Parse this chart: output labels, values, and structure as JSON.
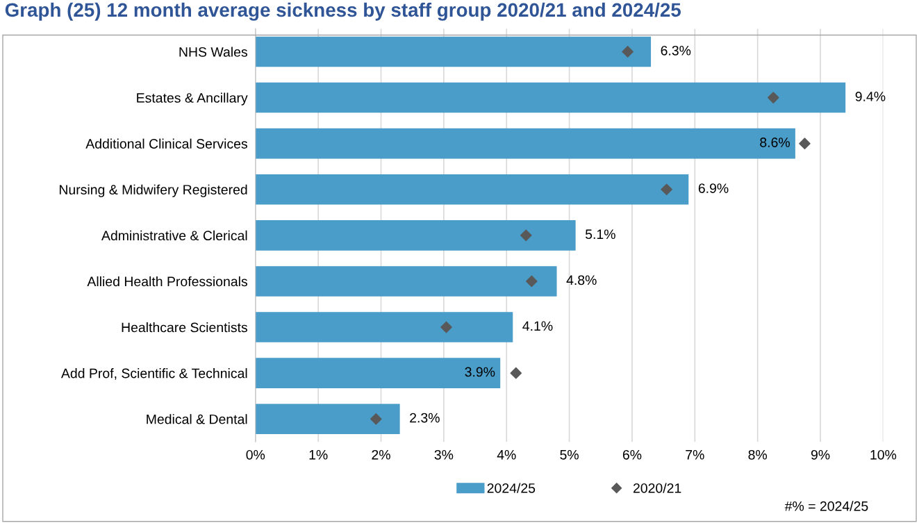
{
  "chart_data": {
    "type": "bar",
    "orientation": "horizontal",
    "title": "Graph (25) 12 month average sickness by staff group 2020/21 and 2024/25",
    "categories": [
      "NHS Wales",
      "Estates & Ancillary",
      "Additional Clinical Services",
      "Nursing & Midwifery Registered",
      "Administrative & Clerical",
      "Allied Health Professionals",
      "Healthcare Scientists",
      "Add Prof, Scientific & Technical",
      "Medical & Dental"
    ],
    "series": [
      {
        "name": "2024/25",
        "color": "#4a9cc9",
        "values": [
          6.3,
          9.4,
          8.6,
          6.9,
          5.1,
          4.8,
          4.1,
          3.9,
          2.3
        ],
        "value_labels": [
          "6.3%",
          "9.4%",
          "8.6%",
          "6.9%",
          "5.1%",
          "4.8%",
          "4.1%",
          "3.9%",
          "2.3%"
        ]
      },
      {
        "name": "2020/21",
        "type": "scatter",
        "marker": "diamond",
        "color": "#595959",
        "values": [
          5.93,
          8.25,
          8.75,
          6.55,
          4.31,
          4.4,
          3.04,
          4.15,
          1.92
        ]
      }
    ],
    "xlim": [
      0,
      10
    ],
    "xticks": [
      {
        "value": 0,
        "label": "0%"
      },
      {
        "value": 1,
        "label": "1%"
      },
      {
        "value": 2,
        "label": "2%"
      },
      {
        "value": 3,
        "label": "3%"
      },
      {
        "value": 4,
        "label": "4%"
      },
      {
        "value": 5,
        "label": "5%"
      },
      {
        "value": 6,
        "label": "6%"
      },
      {
        "value": 7,
        "label": "7%"
      },
      {
        "value": 8,
        "label": "8%"
      },
      {
        "value": 9,
        "label": "9%"
      },
      {
        "value": 10,
        "label": "10%"
      }
    ],
    "grid": "x",
    "legend": "bottom",
    "annotations": [
      "#% = 2024/25"
    ]
  }
}
